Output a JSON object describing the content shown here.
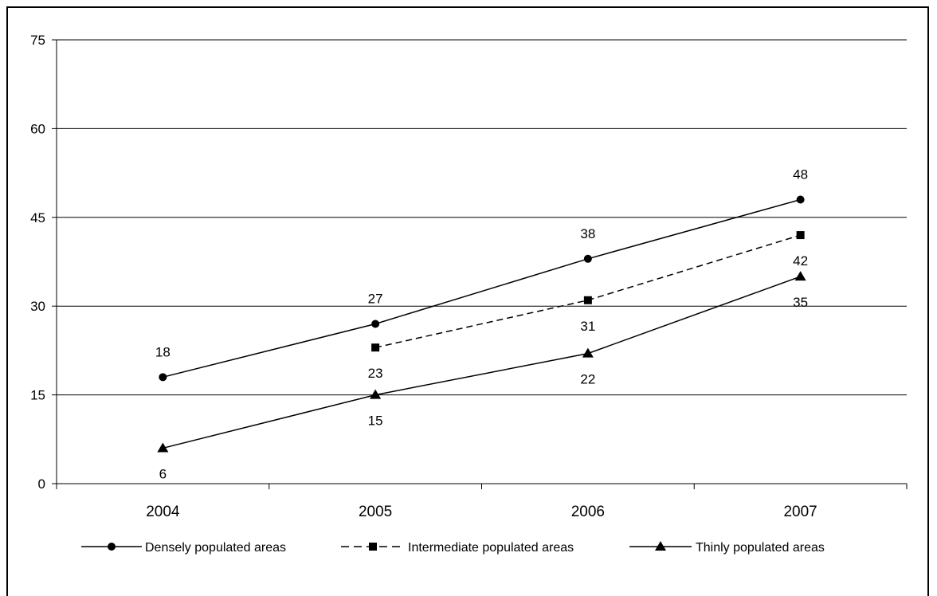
{
  "chart_data": {
    "type": "line",
    "categories": [
      "2004",
      "2005",
      "2006",
      "2007"
    ],
    "ylim": [
      0,
      75
    ],
    "yticks": [
      0,
      15,
      30,
      45,
      60,
      75
    ],
    "grid": true,
    "legend_position": "bottom",
    "series": [
      {
        "name": "Densely populated areas",
        "values": [
          18,
          27,
          38,
          48
        ],
        "labels": [
          "18",
          "27",
          "38",
          "48"
        ],
        "marker": "circle",
        "line_style": "solid",
        "color": "#000000"
      },
      {
        "name": "Intermediate populated areas",
        "values": [
          null,
          23,
          31,
          42
        ],
        "labels": [
          "",
          "23",
          "31",
          "42"
        ],
        "marker": "square",
        "line_style": "dashed",
        "color": "#000000"
      },
      {
        "name": "Thinly populated areas",
        "values": [
          6,
          15,
          22,
          35
        ],
        "labels": [
          "6",
          "15",
          "22",
          "35"
        ],
        "marker": "triangle",
        "line_style": "solid",
        "color": "#000000"
      }
    ]
  }
}
